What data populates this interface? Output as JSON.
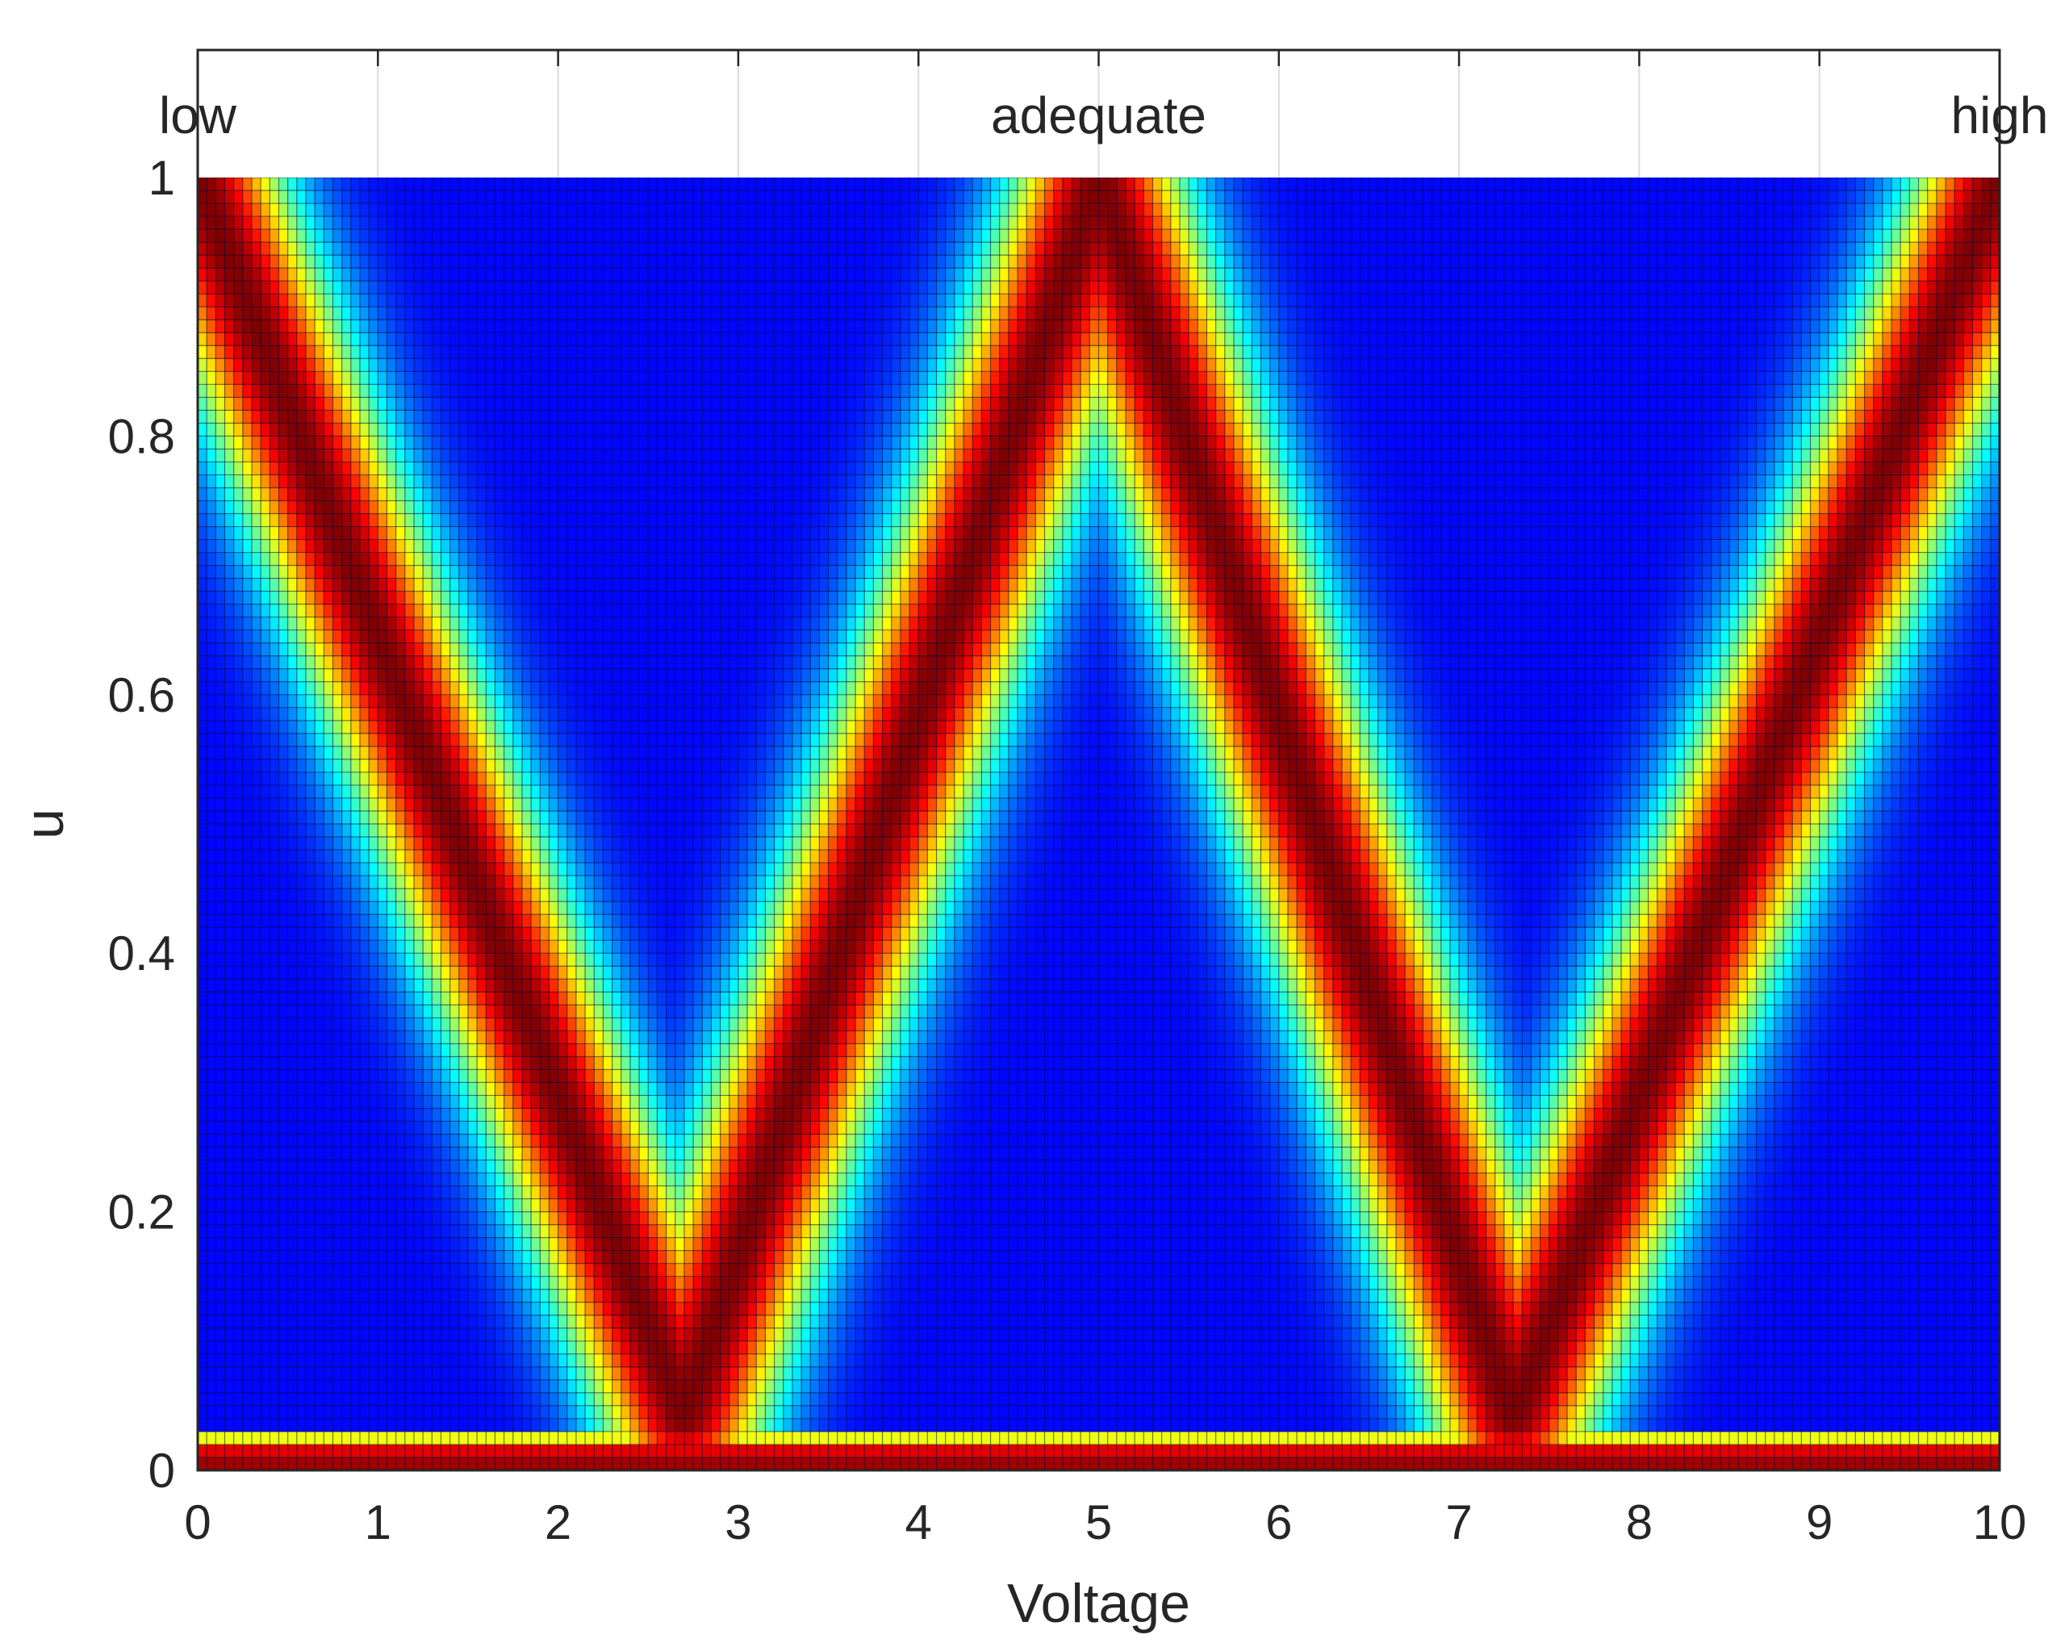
{
  "chart_data": {
    "type": "heatmap",
    "title": "",
    "xlabel": "Voltage",
    "ylabel": "u",
    "xlim": [
      0,
      10
    ],
    "ylim": [
      0,
      1
    ],
    "x_ticks": [
      "0",
      "1",
      "2",
      "3",
      "4",
      "5",
      "6",
      "7",
      "8",
      "9",
      "10"
    ],
    "y_ticks": [
      "0",
      "0.2",
      "0.4",
      "0.6",
      "0.8",
      "1"
    ],
    "top_labels": [
      {
        "text": "low",
        "x": 0
      },
      {
        "text": "adequate",
        "x": 5
      },
      {
        "text": "high",
        "x": 10
      }
    ],
    "top_strip_ticks": [
      0,
      1,
      2,
      3,
      4,
      5,
      6,
      7,
      8,
      9,
      10
    ],
    "colormap": "jet",
    "grid_x_cells": 200,
    "grid_y_cells": 100,
    "band_centers": [
      {
        "name": "low",
        "points": [
          [
            0,
            1
          ],
          [
            2.7,
            0.04
          ]
        ]
      },
      {
        "name": "adequate-left",
        "points": [
          [
            2.7,
            0.04
          ],
          [
            5,
            1
          ]
        ]
      },
      {
        "name": "adequate-right",
        "points": [
          [
            5,
            1
          ],
          [
            7.3,
            0.04
          ]
        ]
      },
      {
        "name": "high",
        "points": [
          [
            7.3,
            0.04
          ],
          [
            10,
            1
          ]
        ]
      }
    ],
    "bottom_band": {
      "u_max": 0.02
    },
    "colors": {
      "background_low": "#00008f",
      "peak": "#800000",
      "grid_line": "#0a0a3a"
    }
  }
}
